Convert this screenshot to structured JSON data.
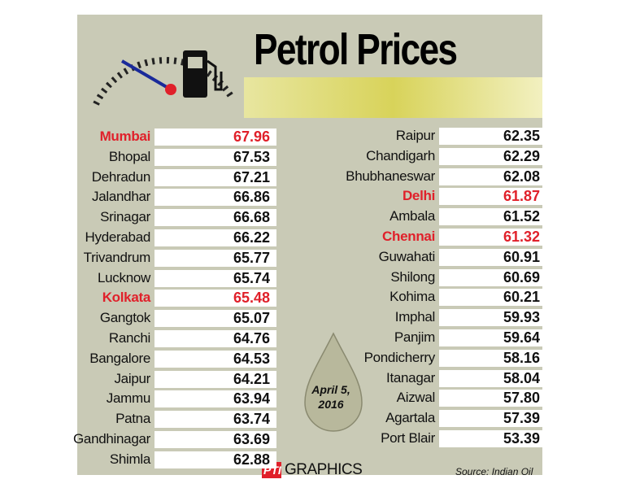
{
  "header": {
    "title": "Petrol Prices",
    "date": "April 5, 2016"
  },
  "highlight_color": "#e0202a",
  "table": {
    "left": [
      {
        "city": "Mumbai",
        "price": "67.96",
        "highlight": true
      },
      {
        "city": "Bhopal",
        "price": "67.53",
        "highlight": false
      },
      {
        "city": "Dehradun",
        "price": "67.21",
        "highlight": false
      },
      {
        "city": "Jalandhar",
        "price": "66.86",
        "highlight": false
      },
      {
        "city": "Srinagar",
        "price": "66.68",
        "highlight": false
      },
      {
        "city": "Hyderabad",
        "price": "66.22",
        "highlight": false
      },
      {
        "city": "Trivandrum",
        "price": "65.77",
        "highlight": false
      },
      {
        "city": "Lucknow",
        "price": "65.74",
        "highlight": false
      },
      {
        "city": "Kolkata",
        "price": "65.48",
        "highlight": true
      },
      {
        "city": "Gangtok",
        "price": "65.07",
        "highlight": false
      },
      {
        "city": "Ranchi",
        "price": "64.76",
        "highlight": false
      },
      {
        "city": "Bangalore",
        "price": "64.53",
        "highlight": false
      },
      {
        "city": "Jaipur",
        "price": "64.21",
        "highlight": false
      },
      {
        "city": "Jammu",
        "price": "63.94",
        "highlight": false
      },
      {
        "city": "Patna",
        "price": "63.74",
        "highlight": false
      },
      {
        "city": "Gandhinagar",
        "price": "63.69",
        "highlight": false
      },
      {
        "city": "Shimla",
        "price": "62.88",
        "highlight": false
      }
    ],
    "right": [
      {
        "city": "Raipur",
        "price": "62.35",
        "highlight": false
      },
      {
        "city": "Chandigarh",
        "price": "62.29",
        "highlight": false
      },
      {
        "city": "Bhubhaneswar",
        "price": "62.08",
        "highlight": false
      },
      {
        "city": "Delhi",
        "price": "61.87",
        "highlight": true
      },
      {
        "city": "Ambala",
        "price": "61.52",
        "highlight": false
      },
      {
        "city": "Chennai",
        "price": "61.32",
        "highlight": true
      },
      {
        "city": "Guwahati",
        "price": "60.91",
        "highlight": false
      },
      {
        "city": "Shilong",
        "price": "60.69",
        "highlight": false
      },
      {
        "city": "Kohima",
        "price": "60.21",
        "highlight": false
      },
      {
        "city": "Imphal",
        "price": "59.93",
        "highlight": false
      },
      {
        "city": "Panjim",
        "price": "59.64",
        "highlight": false
      },
      {
        "city": "Pondicherry",
        "price": "58.16",
        "highlight": false
      },
      {
        "city": "Itanagar",
        "price": "58.04",
        "highlight": false
      },
      {
        "city": "Aizwal",
        "price": "57.80",
        "highlight": false
      },
      {
        "city": "Agartala",
        "price": "57.39",
        "highlight": false
      },
      {
        "city": "Port Blair",
        "price": "53.39",
        "highlight": false
      }
    ]
  },
  "footer": {
    "credit_pti": "PTI",
    "credit_graphics": "GRAPHICS",
    "source": "Source: Indian Oil"
  }
}
